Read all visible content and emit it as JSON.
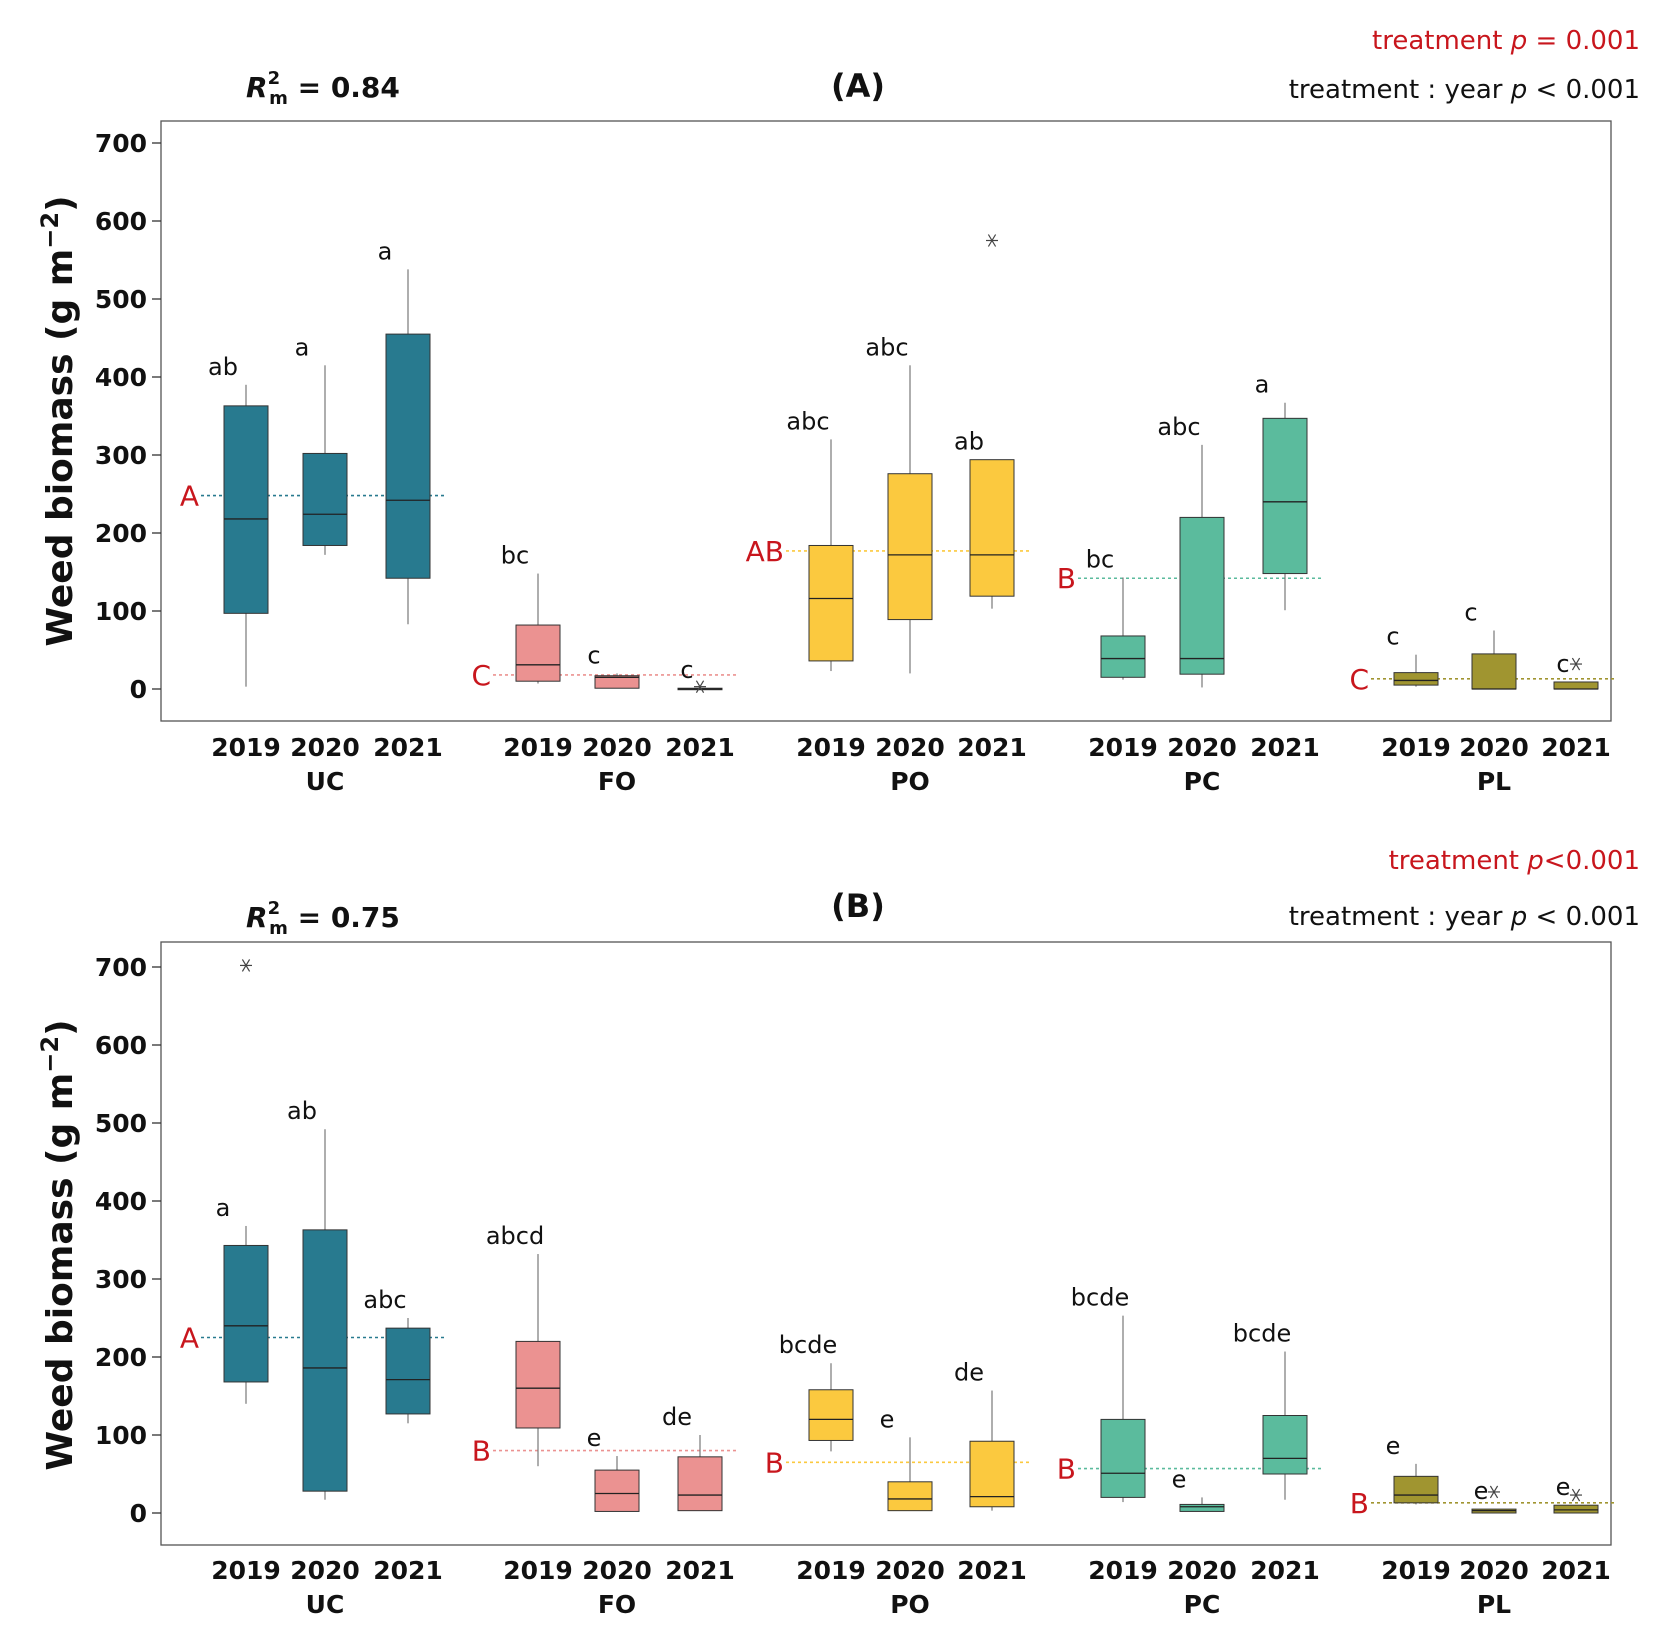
{
  "chart_data": [
    {
      "type": "boxplot",
      "panel": "(A)",
      "r2m": "R2m = 0.84",
      "r2_value": "0.84",
      "stat_treatment": "treatment  p = 0.001",
      "stat_interaction": "treatment : year p < 0.001",
      "ylabel": "Weed biomass (g m-2)",
      "ylim": [
        -40,
        730
      ],
      "yticks": [
        0,
        100,
        200,
        300,
        400,
        500,
        600,
        700
      ],
      "groups": [
        {
          "name": "UC",
          "color": "#287a8f",
          "treatment_letter": "A",
          "mean": 248,
          "years": [
            {
              "year": "2019",
              "min": 3,
              "q1": 97,
              "median": 218,
              "q3": 363,
              "max": 390,
              "letter": "ab",
              "outliers": []
            },
            {
              "year": "2020",
              "min": 172,
              "q1": 184,
              "median": 224,
              "q3": 302,
              "max": 415,
              "letter": "a",
              "outliers": []
            },
            {
              "year": "2021",
              "min": 83,
              "q1": 142,
              "median": 242,
              "q3": 455,
              "max": 538,
              "letter": "a",
              "outliers": []
            }
          ]
        },
        {
          "name": "FO",
          "color": "#eb9291",
          "treatment_letter": "C",
          "mean": 18,
          "years": [
            {
              "year": "2019",
              "min": 7,
              "q1": 10,
              "median": 31,
              "q3": 82,
              "max": 148,
              "letter": "bc",
              "outliers": []
            },
            {
              "year": "2020",
              "min": 1,
              "q1": 1,
              "median": 15,
              "q3": 17,
              "max": 20,
              "letter": "c",
              "outliers": []
            },
            {
              "year": "2021",
              "min": 0,
              "q1": 0,
              "median": 0,
              "q3": 1,
              "max": 1,
              "letter": "c",
              "outliers": [
                3
              ]
            }
          ]
        },
        {
          "name": "PO",
          "color": "#fbc93f",
          "treatment_letter": "AB",
          "mean": 177,
          "years": [
            {
              "year": "2019",
              "min": 23,
              "q1": 36,
              "median": 116,
              "q3": 184,
              "max": 320,
              "letter": "abc",
              "outliers": []
            },
            {
              "year": "2020",
              "min": 20,
              "q1": 89,
              "median": 172,
              "q3": 276,
              "max": 415,
              "letter": "abc",
              "outliers": []
            },
            {
              "year": "2021",
              "min": 103,
              "q1": 119,
              "median": 172,
              "q3": 294,
              "max": 294,
              "letter": "ab",
              "outliers": [
                575
              ]
            }
          ]
        },
        {
          "name": "PC",
          "color": "#5bbb9d",
          "treatment_letter": "B",
          "mean": 142,
          "years": [
            {
              "year": "2019",
              "min": 12,
              "q1": 15,
              "median": 39,
              "q3": 68,
              "max": 143,
              "letter": "bc",
              "outliers": []
            },
            {
              "year": "2020",
              "min": 2,
              "q1": 19,
              "median": 39,
              "q3": 220,
              "max": 313,
              "letter": "abc",
              "outliers": []
            },
            {
              "year": "2021",
              "min": 101,
              "q1": 148,
              "median": 240,
              "q3": 347,
              "max": 367,
              "letter": "a",
              "outliers": []
            }
          ]
        },
        {
          "name": "PL",
          "color": "#a09530",
          "treatment_letter": "C",
          "mean": 13,
          "years": [
            {
              "year": "2019",
              "min": 3,
              "q1": 5,
              "median": 11,
              "q3": 21,
              "max": 44,
              "letter": "c",
              "outliers": []
            },
            {
              "year": "2020",
              "min": 0,
              "q1": 0,
              "median": 0,
              "q3": 45,
              "max": 75,
              "letter": "c",
              "outliers": []
            },
            {
              "year": "2021",
              "min": 0,
              "q1": 0,
              "median": 0,
              "q3": 9,
              "max": 9,
              "letter": "c",
              "outliers": [
                32
              ]
            }
          ]
        }
      ]
    },
    {
      "type": "boxplot",
      "panel": "(B)",
      "r2m": "R2m = 0.75",
      "r2_value": "0.75",
      "stat_treatment": "treatment  p<0.001",
      "stat_interaction": "treatment : year p < 0.001",
      "ylabel": "Weed biomass (g m-2)",
      "ylim": [
        -40,
        730
      ],
      "yticks": [
        0,
        100,
        200,
        300,
        400,
        500,
        600,
        700
      ],
      "groups": [
        {
          "name": "UC",
          "color": "#287a8f",
          "treatment_letter": "A",
          "mean": 225,
          "years": [
            {
              "year": "2019",
              "min": 140,
              "q1": 168,
              "median": 240,
              "q3": 343,
              "max": 368,
              "letter": "a",
              "outliers": [
                702
              ]
            },
            {
              "year": "2020",
              "min": 17,
              "q1": 28,
              "median": 186,
              "q3": 363,
              "max": 492,
              "letter": "ab",
              "outliers": []
            },
            {
              "year": "2021",
              "min": 115,
              "q1": 127,
              "median": 171,
              "q3": 237,
              "max": 250,
              "letter": "abc",
              "outliers": []
            }
          ]
        },
        {
          "name": "FO",
          "color": "#eb9291",
          "treatment_letter": "B",
          "mean": 80,
          "years": [
            {
              "year": "2019",
              "min": 60,
              "q1": 109,
              "median": 160,
              "q3": 220,
              "max": 332,
              "letter": "abcd",
              "outliers": []
            },
            {
              "year": "2020",
              "min": 2,
              "q1": 2,
              "median": 25,
              "q3": 55,
              "max": 73,
              "letter": "e",
              "outliers": []
            },
            {
              "year": "2021",
              "min": 3,
              "q1": 3,
              "median": 23,
              "q3": 72,
              "max": 100,
              "letter": "de",
              "outliers": []
            }
          ]
        },
        {
          "name": "PO",
          "color": "#fbc93f",
          "treatment_letter": "B",
          "mean": 65,
          "years": [
            {
              "year": "2019",
              "min": 79,
              "q1": 93,
              "median": 120,
              "q3": 158,
              "max": 192,
              "letter": "bcde",
              "outliers": []
            },
            {
              "year": "2020",
              "min": 3,
              "q1": 3,
              "median": 18,
              "q3": 40,
              "max": 97,
              "letter": "e",
              "outliers": []
            },
            {
              "year": "2021",
              "min": 3,
              "q1": 8,
              "median": 21,
              "q3": 92,
              "max": 157,
              "letter": "de",
              "outliers": []
            }
          ]
        },
        {
          "name": "PC",
          "color": "#5bbb9d",
          "treatment_letter": "B",
          "mean": 57,
          "years": [
            {
              "year": "2019",
              "min": 14,
              "q1": 20,
              "median": 51,
              "q3": 120,
              "max": 253,
              "letter": "bcde",
              "outliers": []
            },
            {
              "year": "2020",
              "min": 2,
              "q1": 2,
              "median": 8,
              "q3": 11,
              "max": 20,
              "letter": "e",
              "outliers": []
            },
            {
              "year": "2021",
              "min": 17,
              "q1": 50,
              "median": 70,
              "q3": 125,
              "max": 207,
              "letter": "bcde",
              "outliers": []
            }
          ]
        },
        {
          "name": "PL",
          "color": "#a09530",
          "treatment_letter": "B",
          "mean": 13,
          "years": [
            {
              "year": "2019",
              "min": 11,
              "q1": 13,
              "median": 23,
              "q3": 47,
              "max": 63,
              "letter": "e",
              "outliers": []
            },
            {
              "year": "2020",
              "min": 0,
              "q1": 0,
              "median": 3,
              "q3": 5,
              "max": 5,
              "letter": "e",
              "outliers": [
                27
              ]
            },
            {
              "year": "2021",
              "min": 0,
              "q1": 0,
              "median": 4,
              "q3": 10,
              "max": 10,
              "letter": "e",
              "outliers": [
                23
              ]
            }
          ]
        }
      ]
    }
  ]
}
